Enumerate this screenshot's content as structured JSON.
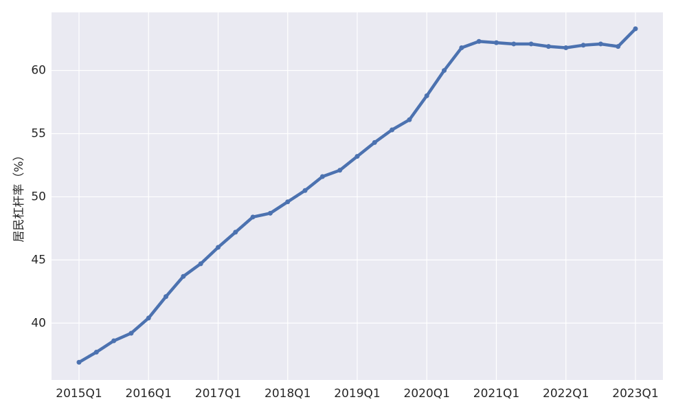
{
  "chart_data": {
    "type": "line",
    "ylabel": "居民杠杆率（%）",
    "categories": [
      "2015Q1",
      null,
      null,
      null,
      "2016Q1",
      null,
      null,
      null,
      "2017Q1",
      null,
      null,
      null,
      "2018Q1",
      null,
      null,
      null,
      "2019Q1",
      null,
      null,
      null,
      "2020Q1",
      null,
      null,
      null,
      "2021Q1",
      null,
      null,
      null,
      "2022Q1",
      null,
      null,
      null,
      "2023Q1"
    ],
    "values": [
      36.9,
      37.7,
      38.6,
      39.2,
      40.4,
      42.1,
      43.7,
      44.7,
      46.0,
      47.2,
      48.4,
      48.7,
      49.6,
      50.5,
      51.6,
      52.1,
      53.2,
      54.3,
      55.3,
      56.1,
      58.0,
      60.0,
      61.8,
      62.3,
      62.2,
      62.1,
      62.1,
      61.9,
      61.8,
      62.0,
      62.1,
      61.9,
      63.3
    ],
    "color": "#4c72b0",
    "ylim": [
      35.5,
      64.6
    ],
    "yticks": [
      40,
      45,
      50,
      55,
      60
    ],
    "grid": true
  }
}
